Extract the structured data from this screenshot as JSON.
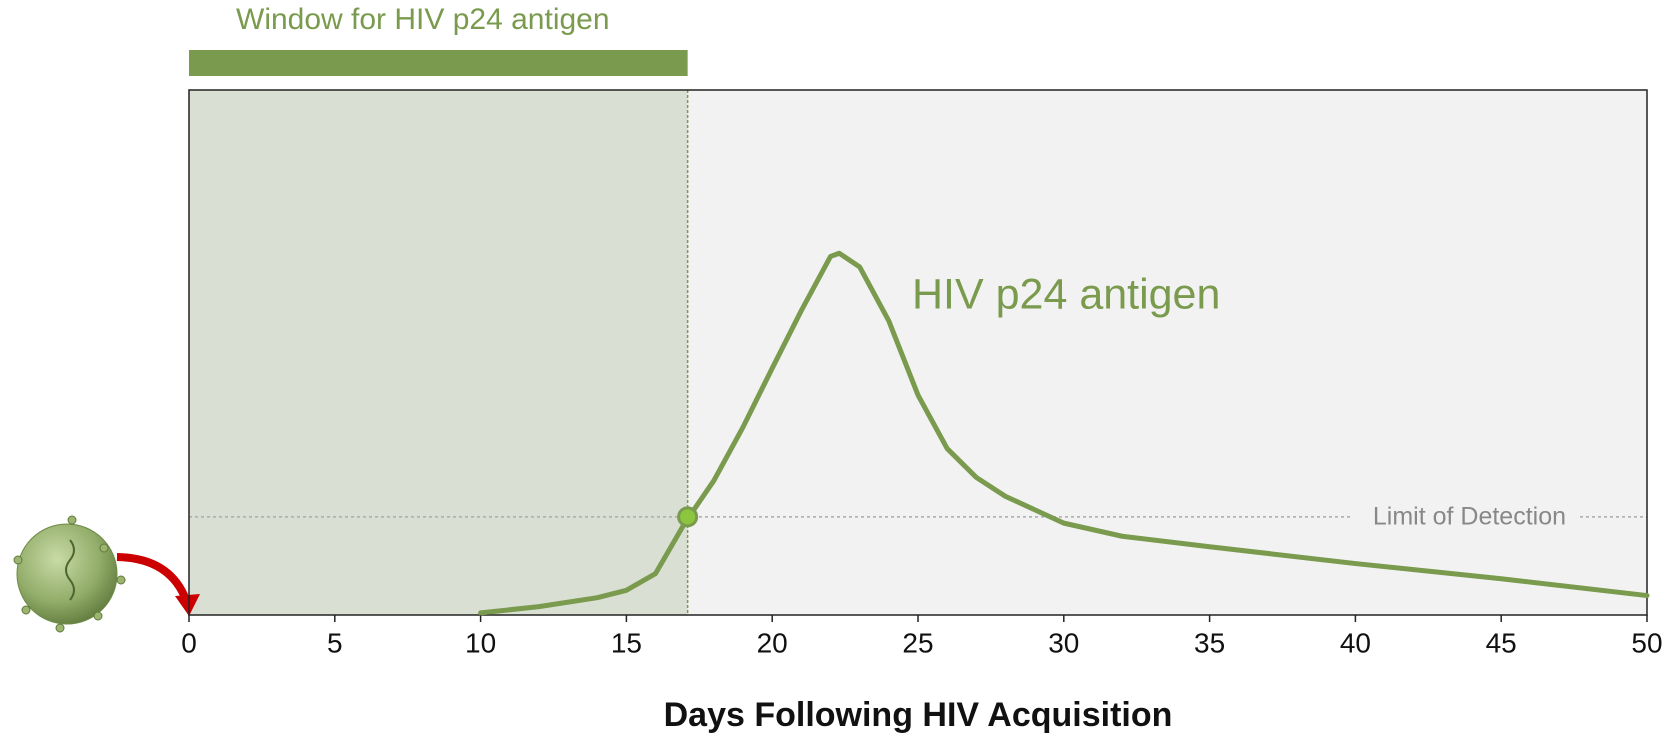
{
  "chart_data": {
    "type": "line",
    "xlabel": "Days Following HIV Acquisition",
    "x": [
      10,
      12,
      14,
      15,
      16,
      17,
      18,
      19,
      20,
      21,
      22,
      22.3,
      23,
      24,
      25,
      26,
      27,
      28,
      30,
      32,
      35,
      40,
      45,
      50
    ],
    "series": [
      {
        "name": "HIV p24 antigen",
        "color": "#7a9a4e",
        "values": [
          0.4,
          1.6,
          3.3,
          4.7,
          7.9,
          17.5,
          25.6,
          35.8,
          47,
          58,
          68.3,
          68.9,
          66.3,
          56,
          41.9,
          31.7,
          26.2,
          22.6,
          17.5,
          15,
          13,
          9.8,
          6.9,
          3.7
        ]
      }
    ],
    "xlim": [
      0,
      50
    ],
    "xticks": [
      0,
      5,
      10,
      15,
      20,
      25,
      30,
      35,
      40,
      45,
      50
    ],
    "ylim": [
      0,
      100
    ],
    "window": {
      "label": "Window for HIV p24 antigen",
      "start": 0,
      "end": 17.1,
      "color": "#7a9a4e",
      "fill": "#d9e0d3"
    },
    "limit_of_detection": {
      "label": "Limit of Detection",
      "value": 18.7
    }
  }
}
